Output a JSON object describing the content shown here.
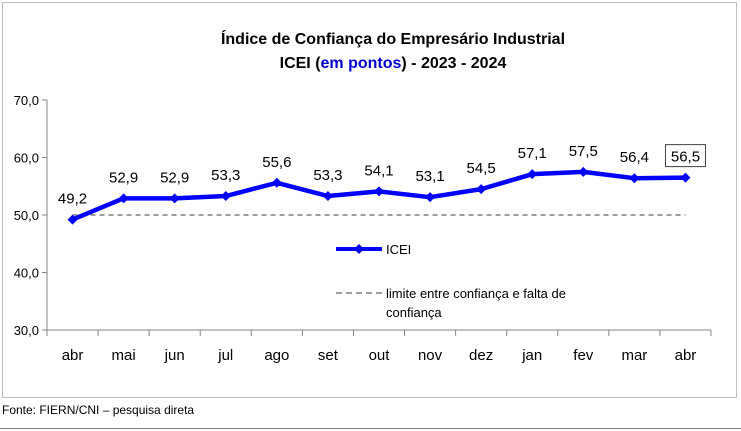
{
  "chart_data": {
    "type": "line",
    "title_line1": "Índice de Confiança do Empresário Industrial",
    "title_line2_pre": "ICEI (",
    "title_line2_em": "em pontos",
    "title_line2_post": ") - 2023 - 2024",
    "categories": [
      "abr",
      "mai",
      "jun",
      "jul",
      "ago",
      "set",
      "out",
      "nov",
      "dez",
      "jan",
      "fev",
      "mar",
      "abr"
    ],
    "series": [
      {
        "name": "ICEI",
        "values": [
          49.2,
          52.9,
          52.9,
          53.3,
          55.6,
          53.3,
          54.1,
          53.1,
          54.5,
          57.1,
          57.5,
          56.4,
          56.5
        ],
        "labels": [
          "49,2",
          "52,9",
          "52,9",
          "53,3",
          "55,6",
          "53,3",
          "54,1",
          "53,1",
          "54,5",
          "57,1",
          "57,5",
          "56,4",
          "56,5"
        ],
        "color": "#0000ff"
      }
    ],
    "reference_line": {
      "name_line1": "limite entre confiança e falta de",
      "name_line2": "confiança",
      "value": 50,
      "color": "#7f7f7f",
      "style": "dashed"
    },
    "ylim": [
      30,
      70
    ],
    "yticks": [
      30,
      40,
      50,
      60,
      70
    ],
    "ytick_labels": [
      "30,0",
      "40,0",
      "50,0",
      "60,0",
      "70,0"
    ],
    "xlabel": "",
    "ylabel": "",
    "grid": false,
    "legend_position": "center-right",
    "boxed_label_index": 12,
    "title_em_color": "#0000cc"
  },
  "source_note": "Fonte: FIERN/CNI – pesquisa direta"
}
